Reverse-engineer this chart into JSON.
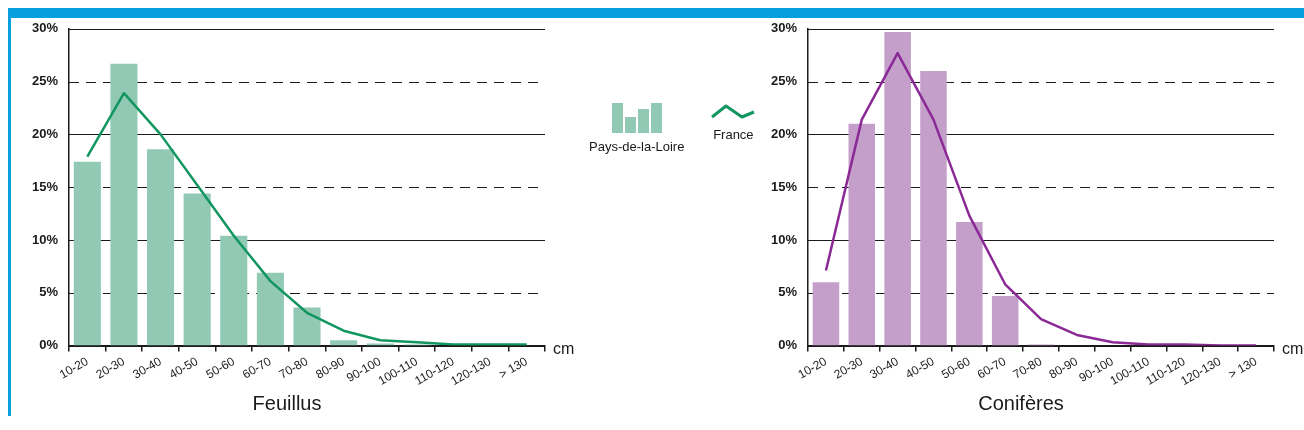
{
  "chart_data": [
    {
      "type": "bar",
      "title": "Feuillus",
      "xlabel": "cm",
      "categories": [
        "10-20",
        "20-30",
        "30-40",
        "40-50",
        "50-60",
        "60-70",
        "70-80",
        "80-90",
        "90-100",
        "100-110",
        "110-120",
        "120-130",
        "> 130"
      ],
      "series": [
        {
          "name": "Pays-de-la-Loire",
          "color": "#92c9b5",
          "values": [
            17.4,
            26.7,
            18.6,
            14.4,
            10.4,
            6.9,
            3.6,
            0.5,
            0.2,
            0.1,
            0,
            0,
            0
          ]
        },
        {
          "name": "France",
          "type": "line",
          "color": "#12965f",
          "values": [
            17.9,
            23.9,
            20.0,
            15.2,
            10.4,
            6.1,
            3.1,
            1.4,
            0.5,
            0.3,
            0.1,
            0.1,
            0.1
          ]
        }
      ],
      "ylim": [
        0,
        30
      ],
      "yticks": [
        {
          "value": 0,
          "label": "0%"
        },
        {
          "value": 5,
          "label": "5%"
        },
        {
          "value": 10,
          "label": "10%"
        },
        {
          "value": 15,
          "label": "15%"
        },
        {
          "value": 20,
          "label": "20%"
        },
        {
          "value": 25,
          "label": "25%"
        },
        {
          "value": 30,
          "label": "30%"
        }
      ],
      "grid": "y",
      "legend": "right"
    },
    {
      "type": "bar",
      "title": "Conifères",
      "xlabel": "cm",
      "categories": [
        "10-20",
        "20-30",
        "30-40",
        "40-50",
        "50-60",
        "60-70",
        "70-80",
        "80-90",
        "90-100",
        "100-110",
        "110-120",
        "120-130",
        "> 130"
      ],
      "series": [
        {
          "color": "#c39fca",
          "values": [
            6.0,
            21.0,
            29.7,
            26.0,
            11.7,
            4.7,
            0.1,
            0,
            0,
            0,
            0,
            0,
            0
          ]
        },
        {
          "type": "line",
          "color": "#8b2a96",
          "values": [
            7.1,
            21.4,
            27.7,
            21.4,
            12.3,
            5.8,
            2.5,
            1.0,
            0.3,
            0.1,
            0.1,
            0,
            0
          ]
        }
      ],
      "ylim": [
        0,
        30
      ],
      "yticks": [
        {
          "value": 0,
          "label": "0%"
        },
        {
          "value": 5,
          "label": "5%"
        },
        {
          "value": 10,
          "label": "10%"
        },
        {
          "value": 15,
          "label": "15%"
        },
        {
          "value": 20,
          "label": "20%"
        },
        {
          "value": 25,
          "label": "25%"
        },
        {
          "value": 30,
          "label": "30%"
        }
      ],
      "grid": "y"
    }
  ]
}
